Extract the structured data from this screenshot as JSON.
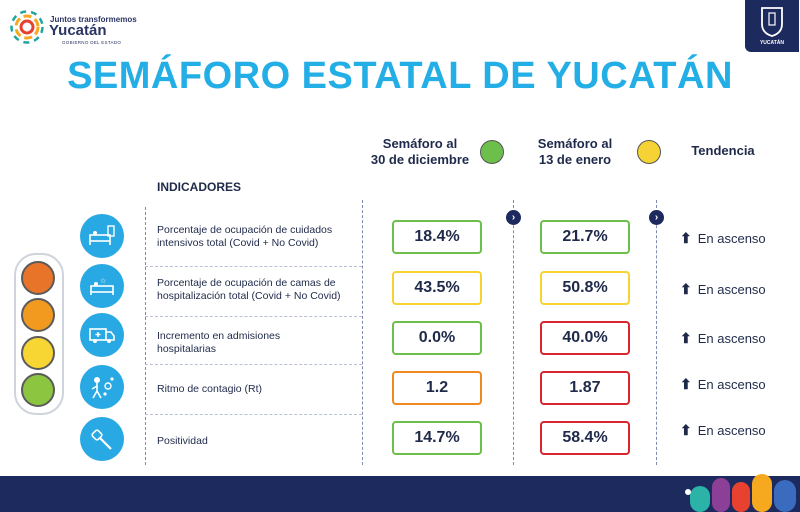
{
  "header": {
    "logo_small": "Juntos transformemos",
    "logo_big": "Yucatán",
    "logo_sub": "GOBIERNO DEL ESTADO",
    "seal_text": "YUCATÁN",
    "title": "SEMÁFORO ESTATAL DE YUCATÁN"
  },
  "columns": {
    "col1_line1": "Semáforo al",
    "col1_line2": "30 de diciembre",
    "col1_color": "#6cbf4b",
    "col2_line1": "Semáforo al",
    "col2_line2": "13 de enero",
    "col2_color": "#f5d334",
    "trend": "Tendencia",
    "indicators": "INDICADORES"
  },
  "rows": [
    {
      "icon": "icu-bed-icon",
      "label1": "Porcentaje de ocupación de cuidados",
      "label2": "intensivos total (Covid + No Covid)",
      "v1": "18.4%",
      "c1": "green",
      "v2": "21.7%",
      "c2": "green",
      "trend": "En ascenso"
    },
    {
      "icon": "hospital-bed-icon",
      "label1": "Porcentaje de ocupación de camas de",
      "label2": "hospitalización total (Covid + No Covid)",
      "v1": "43.5%",
      "c1": "yellow",
      "v2": "50.8%",
      "c2": "yellow",
      "trend": "En ascenso"
    },
    {
      "icon": "ambulance-icon",
      "label1": "Incremento en admisiones",
      "label2": "hospitalarias",
      "v1": "0.0%",
      "c1": "green",
      "v2": "40.0%",
      "c2": "red",
      "trend": "En ascenso"
    },
    {
      "icon": "contagion-icon",
      "label1": "Ritmo de contagio (Rt)",
      "label2": "",
      "v1": "1.2",
      "c1": "orange",
      "v2": "1.87",
      "c2": "red",
      "trend": "En ascenso"
    },
    {
      "icon": "test-swab-icon",
      "label1": "Positividad",
      "label2": "",
      "v1": "14.7%",
      "c1": "green",
      "v2": "58.4%",
      "c2": "red",
      "trend": "En ascenso"
    }
  ],
  "traffic_light": [
    "#e8742a",
    "#f19a1f",
    "#f7d633",
    "#8cc540"
  ]
}
